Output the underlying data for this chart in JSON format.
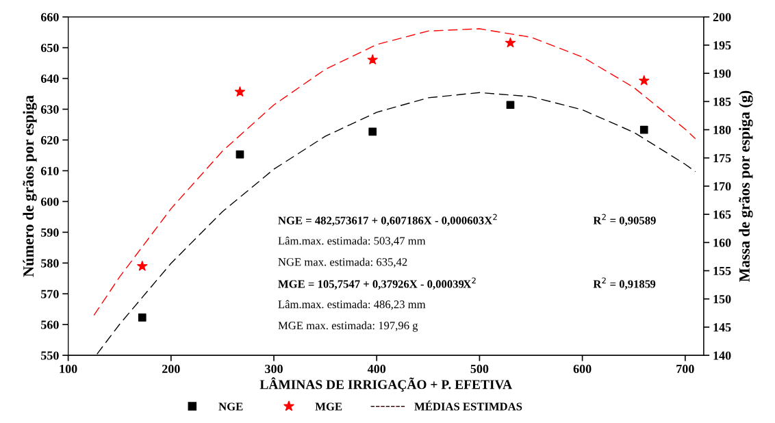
{
  "chart_data": {
    "type": "scatter",
    "xlabel": "LÂMINAS DE IRRIGAÇÃO + P. EFETIVA",
    "ylabel": "Número de grãos por espiga",
    "y2label": "Massa de grãos por espiga (g)",
    "xlim": [
      100,
      718
    ],
    "xticks": [
      100,
      200,
      300,
      400,
      500,
      600,
      700
    ],
    "ylim": [
      550,
      660
    ],
    "yticks": [
      550,
      560,
      570,
      580,
      590,
      600,
      610,
      620,
      630,
      640,
      650,
      660
    ],
    "y2lim": [
      140,
      200
    ],
    "y2ticks": [
      140,
      145,
      150,
      155,
      160,
      165,
      170,
      175,
      180,
      185,
      190,
      195,
      200
    ],
    "legend": "bottom",
    "grid": false,
    "series": [
      {
        "name": "NGE",
        "marker": "square",
        "color": "#000000",
        "axis": "y",
        "x": [
          172,
          267,
          396,
          530,
          660
        ],
        "values": [
          562.3,
          615.3,
          622.7,
          631.4,
          623.3
        ]
      },
      {
        "name": "MGE",
        "marker": "star",
        "color": "#ff0000",
        "axis": "y2",
        "x": [
          172,
          267,
          396,
          530,
          660
        ],
        "values": [
          155.8,
          186.7,
          192.4,
          195.4,
          188.7
        ]
      },
      {
        "name": "MÉDIAS ESTIMDAS",
        "type": "line",
        "line_style": "dashed",
        "color": "#ff0000",
        "axis": "y2",
        "x": [
          125,
          150,
          200,
          250,
          300,
          350,
          400,
          450,
          500,
          550,
          600,
          650,
          700,
          710
        ],
        "values": [
          147.1,
          153.9,
          166.0,
          176.2,
          184.4,
          190.7,
          195.1,
          197.5,
          197.9,
          196.4,
          192.9,
          187.5,
          180.1,
          178.4
        ]
      },
      {
        "type": "line",
        "line_style": "dashed",
        "color": "#000000",
        "axis": "y",
        "x": [
          128,
          150,
          200,
          250,
          300,
          350,
          400,
          450,
          500,
          550,
          600,
          650,
          700,
          710
        ],
        "values": [
          550.4,
          560.1,
          579.9,
          596.7,
          610.5,
          621.2,
          629.0,
          633.7,
          635.4,
          634.1,
          629.8,
          622.5,
          612.1,
          609.7
        ]
      }
    ],
    "annotations": [
      "NGE = 482,573617 + 0,607186X - 0,000603X$^{2}$",
      "R$^{2}$ = 0,90589",
      "Lâm.max. estimada: 503,47 mm",
      "NGE max. estimada: 635,42",
      "MGE = 105,7547 + 0,37926X - 0,00039X$^{2}$",
      "R$^{2}$ = 0,91859",
      "Lâm.max. estimada: 486,23 mm",
      "MGE max. estimada: 197,96 g"
    ]
  }
}
